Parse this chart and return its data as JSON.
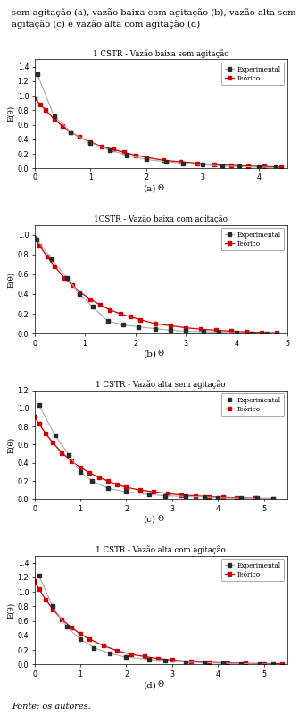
{
  "plots": [
    {
      "title": "1 CSTR - Vazão baixa sem agitação",
      "label": "(a)",
      "xlim": [
        0,
        4.5
      ],
      "ylim": [
        0,
        1.5
      ],
      "xticks": [
        0,
        1,
        2,
        3,
        4
      ],
      "yticks": [
        0.0,
        0.2,
        0.4,
        0.6,
        0.8,
        1.0,
        1.2,
        1.4
      ],
      "exp_theta": [
        0.05,
        0.35,
        0.65,
        1.0,
        1.35,
        1.65,
        2.0,
        2.35,
        2.65,
        3.0,
        3.35,
        3.65,
        4.0,
        4.3
      ],
      "exp_E": [
        1.3,
        0.72,
        0.5,
        0.35,
        0.25,
        0.18,
        0.12,
        0.09,
        0.07,
        0.05,
        0.03,
        0.025,
        0.015,
        0.01
      ],
      "teo_theta": [
        0.0,
        0.1,
        0.2,
        0.35,
        0.5,
        0.65,
        0.8,
        1.0,
        1.2,
        1.4,
        1.6,
        1.8,
        2.0,
        2.3,
        2.6,
        2.9,
        3.2,
        3.5,
        3.8,
        4.1,
        4.4
      ],
      "teo_E": [
        0.97,
        0.88,
        0.8,
        0.68,
        0.58,
        0.5,
        0.43,
        0.36,
        0.3,
        0.26,
        0.22,
        0.18,
        0.15,
        0.11,
        0.09,
        0.07,
        0.05,
        0.04,
        0.03,
        0.025,
        0.018
      ],
      "ylabel": "E(θ)"
    },
    {
      "title": "1CSTR - Vazão baixa com agitação",
      "label": "(b)",
      "xlim": [
        0,
        5
      ],
      "ylim": [
        0,
        1.1
      ],
      "xticks": [
        0,
        1,
        2,
        3,
        4,
        5
      ],
      "yticks": [
        0.0,
        0.2,
        0.4,
        0.6,
        0.8,
        1.0
      ],
      "exp_theta": [
        0.05,
        0.35,
        0.65,
        0.9,
        1.15,
        1.45,
        1.75,
        2.05,
        2.4,
        2.7,
        3.0,
        3.35,
        3.65,
        4.0,
        4.3,
        4.6
      ],
      "exp_E": [
        0.95,
        0.75,
        0.56,
        0.4,
        0.27,
        0.13,
        0.09,
        0.07,
        0.05,
        0.035,
        0.025,
        0.02,
        0.015,
        0.01,
        0.005,
        0.003
      ],
      "teo_theta": [
        0.0,
        0.1,
        0.25,
        0.4,
        0.6,
        0.75,
        0.9,
        1.1,
        1.3,
        1.5,
        1.7,
        1.9,
        2.1,
        2.4,
        2.7,
        3.0,
        3.3,
        3.6,
        3.9,
        4.2,
        4.5,
        4.8
      ],
      "teo_E": [
        0.97,
        0.89,
        0.78,
        0.68,
        0.56,
        0.49,
        0.42,
        0.35,
        0.29,
        0.24,
        0.2,
        0.17,
        0.14,
        0.1,
        0.08,
        0.06,
        0.045,
        0.035,
        0.025,
        0.018,
        0.013,
        0.009
      ],
      "ylabel": "E(θ)"
    },
    {
      "title": "1 CSTR - Vazão alta sem agitação",
      "label": "(c)",
      "xlim": [
        0,
        5.5
      ],
      "ylim": [
        0,
        1.2
      ],
      "xticks": [
        0,
        1,
        2,
        3,
        4,
        5
      ],
      "yticks": [
        0.0,
        0.2,
        0.4,
        0.6,
        0.8,
        1.0,
        1.2
      ],
      "exp_theta": [
        0.1,
        0.45,
        0.75,
        1.0,
        1.25,
        1.6,
        2.0,
        2.5,
        2.85,
        3.3,
        3.7,
        4.0,
        4.5,
        4.85,
        5.2
      ],
      "exp_E": [
        1.04,
        0.7,
        0.49,
        0.3,
        0.2,
        0.12,
        0.08,
        0.05,
        0.035,
        0.03,
        0.025,
        0.015,
        0.01,
        0.008,
        0.005
      ],
      "teo_theta": [
        0.0,
        0.1,
        0.25,
        0.4,
        0.6,
        0.8,
        1.0,
        1.2,
        1.4,
        1.6,
        1.8,
        2.0,
        2.3,
        2.6,
        2.9,
        3.2,
        3.5,
        3.8,
        4.1,
        4.4,
        4.8,
        5.2
      ],
      "teo_E": [
        0.91,
        0.83,
        0.72,
        0.62,
        0.51,
        0.42,
        0.35,
        0.29,
        0.24,
        0.2,
        0.16,
        0.13,
        0.1,
        0.08,
        0.06,
        0.045,
        0.035,
        0.027,
        0.02,
        0.015,
        0.01,
        0.007
      ],
      "ylabel": "E(θ)"
    },
    {
      "title": "1 CSTR - Vazão alta com agitação",
      "label": "(d)",
      "xlim": [
        0,
        5.5
      ],
      "ylim": [
        0,
        1.5
      ],
      "xticks": [
        0,
        1,
        2,
        3,
        4,
        5
      ],
      "yticks": [
        0.0,
        0.2,
        0.4,
        0.6,
        0.8,
        1.0,
        1.2,
        1.4
      ],
      "exp_theta": [
        0.1,
        0.4,
        0.7,
        1.0,
        1.3,
        1.65,
        2.0,
        2.5,
        2.85,
        3.3,
        3.7,
        4.1,
        4.5,
        4.9,
        5.2
      ],
      "exp_E": [
        1.22,
        0.8,
        0.52,
        0.35,
        0.23,
        0.15,
        0.1,
        0.07,
        0.05,
        0.03,
        0.025,
        0.015,
        0.01,
        0.005,
        0.003
      ],
      "teo_theta": [
        0.0,
        0.1,
        0.25,
        0.4,
        0.6,
        0.8,
        1.0,
        1.2,
        1.5,
        1.8,
        2.1,
        2.4,
        2.7,
        3.0,
        3.4,
        3.8,
        4.2,
        4.6,
        5.0,
        5.4
      ],
      "teo_E": [
        1.15,
        1.04,
        0.89,
        0.76,
        0.62,
        0.51,
        0.42,
        0.35,
        0.26,
        0.19,
        0.14,
        0.11,
        0.08,
        0.06,
        0.04,
        0.028,
        0.02,
        0.014,
        0.01,
        0.007
      ],
      "ylabel": "E(θ)"
    }
  ],
  "exp_color": "#2a2a2a",
  "teo_color": "#cc0000",
  "exp_line_color": "#aaaaaa",
  "legend_exp_label": "Experimental",
  "legend_teo_label": "Teórico",
  "xlabel": "Θ",
  "background_color": "#ffffff",
  "header_line1": "sem agitação (a), vazão baixa com agitação (b), vazão alta sem",
  "header_line2": "agitação (c) e vazão alta com agitação (d)",
  "footer_text": "Fonte: os autores."
}
